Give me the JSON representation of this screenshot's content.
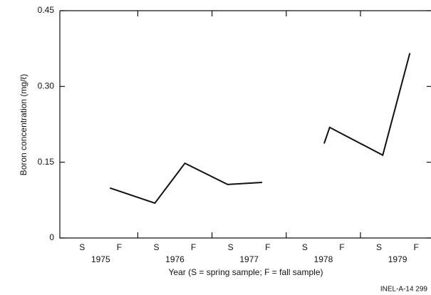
{
  "chart_data": {
    "type": "line",
    "y_label": "Boron concentration (mg/ℓ)",
    "x_label": "Year (S = spring sample; F = fall sample)",
    "footnote": "INEL-A-14 299",
    "years": [
      "1975",
      "1976",
      "1977",
      "1978",
      "1979"
    ],
    "xlim": [
      -0.6,
      9.4
    ],
    "xticks": [
      {
        "value": 0,
        "label": "S"
      },
      {
        "value": 1,
        "label": "F"
      },
      {
        "value": 2,
        "label": "S"
      },
      {
        "value": 3,
        "label": "F"
      },
      {
        "value": 4,
        "label": "S"
      },
      {
        "value": 5,
        "label": "F"
      },
      {
        "value": 6,
        "label": "S"
      },
      {
        "value": 7,
        "label": "F"
      },
      {
        "value": 8,
        "label": "S"
      },
      {
        "value": 9,
        "label": "F"
      }
    ],
    "ylim": [
      0,
      0.45
    ],
    "yticks": [
      0,
      0.15,
      {
        "value": 0.3,
        "label": "0.30"
      },
      0.45
    ],
    "series": [
      {
        "color": "#111111",
        "x": [
          0.75,
          1.96,
          2.77,
          3.92,
          4.85,
          5.7,
          6.52,
          6.67,
          8.1,
          8.83
        ],
        "values": [
          0.099,
          0.069,
          0.148,
          0.106,
          0.11,
          null,
          0.187,
          0.219,
          0.164,
          0.366
        ]
      }
    ]
  }
}
